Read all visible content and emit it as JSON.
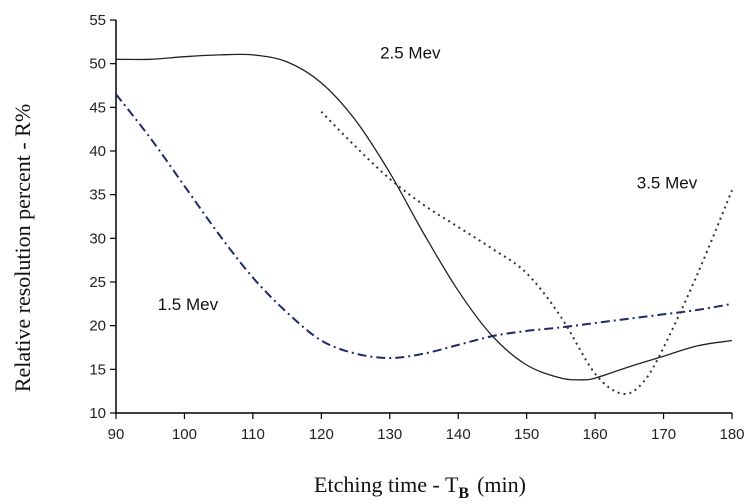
{
  "chart_data": {
    "type": "line",
    "xlabel": "Etching time - T",
    "xlabel_sub": "B",
    "xlabel_unit": "(min)",
    "ylabel": "Relative resolution percent - R%",
    "xlim": [
      90,
      180
    ],
    "ylim": [
      10,
      55
    ],
    "x_ticks": [
      90,
      100,
      110,
      120,
      130,
      140,
      150,
      160,
      170,
      180
    ],
    "y_ticks": [
      10,
      15,
      20,
      25,
      30,
      35,
      40,
      45,
      50,
      55
    ],
    "grid": false,
    "series": [
      {
        "name": "1.5 Mev",
        "style": "dash-dot",
        "color": "#1c2a6b",
        "points": [
          [
            90,
            46.5
          ],
          [
            95,
            41.5
          ],
          [
            100,
            36
          ],
          [
            105,
            30.5
          ],
          [
            110,
            25.5
          ],
          [
            115,
            21.5
          ],
          [
            120,
            18.3
          ],
          [
            125,
            16.8
          ],
          [
            130,
            16.3
          ],
          [
            135,
            16.8
          ],
          [
            140,
            17.8
          ],
          [
            145,
            18.8
          ],
          [
            150,
            19.4
          ],
          [
            155,
            19.8
          ],
          [
            160,
            20.3
          ],
          [
            165,
            20.8
          ],
          [
            170,
            21.3
          ],
          [
            175,
            21.8
          ],
          [
            180,
            22.5
          ]
        ]
      },
      {
        "name": "2.5 Mev",
        "style": "solid",
        "color": "#222222",
        "points": [
          [
            90,
            50.5
          ],
          [
            95,
            50.5
          ],
          [
            100,
            50.8
          ],
          [
            105,
            51
          ],
          [
            110,
            51
          ],
          [
            115,
            50.2
          ],
          [
            120,
            47.8
          ],
          [
            125,
            43.5
          ],
          [
            130,
            37.5
          ],
          [
            135,
            30.5
          ],
          [
            140,
            24
          ],
          [
            145,
            18.8
          ],
          [
            150,
            15.5
          ],
          [
            155,
            14
          ],
          [
            158,
            13.8
          ],
          [
            160,
            14
          ],
          [
            165,
            15.3
          ],
          [
            170,
            16.5
          ],
          [
            175,
            17.7
          ],
          [
            180,
            18.3
          ]
        ]
      },
      {
        "name": "3.5 Mev",
        "style": "dotted",
        "color": "#333333",
        "points": [
          [
            120,
            44.5
          ],
          [
            125,
            40.5
          ],
          [
            130,
            36.8
          ],
          [
            135,
            33.8
          ],
          [
            140,
            31.3
          ],
          [
            145,
            28.8
          ],
          [
            150,
            26
          ],
          [
            155,
            21
          ],
          [
            160,
            14.5
          ],
          [
            164,
            12.2
          ],
          [
            167,
            13.5
          ],
          [
            170,
            17.5
          ],
          [
            175,
            26
          ],
          [
            180,
            35.5
          ]
        ]
      }
    ],
    "series_labels": [
      {
        "text": "1.5 Mev",
        "x": 100.5,
        "y": 21.8
      },
      {
        "text": "2.5 Mev",
        "x": 133,
        "y": 50.6
      },
      {
        "text": "3.5 Mev",
        "x": 170.5,
        "y": 35.7
      }
    ]
  }
}
